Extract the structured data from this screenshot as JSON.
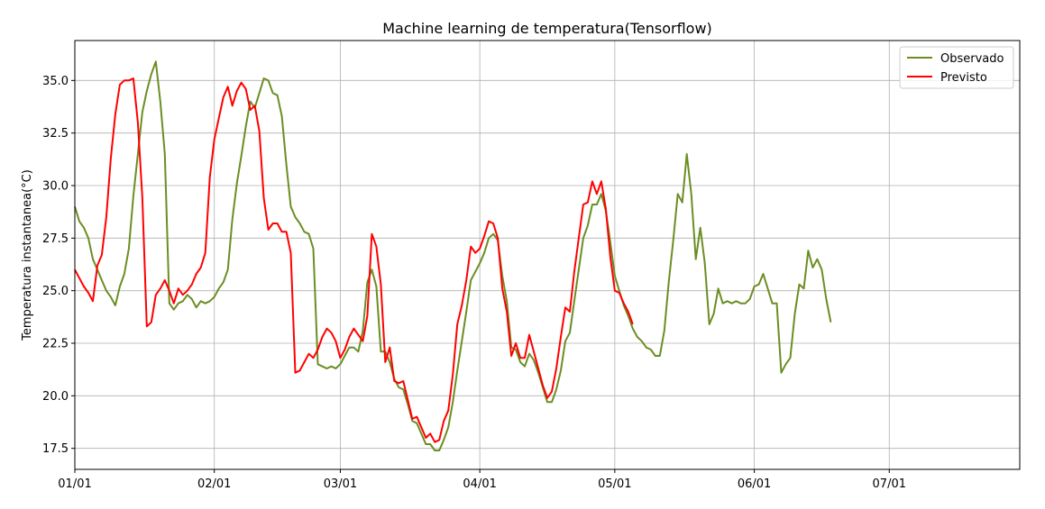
{
  "chart_data": {
    "type": "line",
    "title": "Machine learning de temperatura(Tensorflow)",
    "xlabel": "",
    "ylabel": "Temperatura instantanea(°C)",
    "xlim": [
      0,
      210
    ],
    "ylim": [
      16.5,
      36.9
    ],
    "x_ticks": [
      0,
      31,
      59,
      90,
      120,
      151,
      181
    ],
    "x_tick_labels": [
      "01/01",
      "02/01",
      "03/01",
      "04/01",
      "05/01",
      "06/01",
      "07/01"
    ],
    "y_ticks": [
      17.5,
      20.0,
      22.5,
      25.0,
      27.5,
      30.0,
      32.5,
      35.0
    ],
    "y_tick_labels": [
      "17.5",
      "20.0",
      "22.5",
      "25.0",
      "27.5",
      "30.0",
      "32.5",
      "35.0"
    ],
    "grid": true,
    "legend_position": "top-right",
    "series": [
      {
        "name": "Observado",
        "color": "#6b8e23",
        "points": [
          [
            0,
            29.0
          ],
          [
            1,
            28.3
          ],
          [
            2,
            28.0
          ],
          [
            3,
            27.5
          ],
          [
            4,
            26.5
          ],
          [
            5,
            26.0
          ],
          [
            6,
            25.5
          ],
          [
            7,
            25.0
          ],
          [
            8,
            24.7
          ],
          [
            9,
            24.3
          ],
          [
            10,
            25.2
          ],
          [
            11,
            25.8
          ],
          [
            12,
            27.0
          ],
          [
            13,
            29.5
          ],
          [
            14,
            31.5
          ],
          [
            15,
            33.5
          ],
          [
            16,
            34.5
          ],
          [
            17,
            35.3
          ],
          [
            18,
            35.9
          ],
          [
            19,
            34.0
          ],
          [
            20,
            31.5
          ],
          [
            21,
            24.4
          ],
          [
            22,
            24.1
          ],
          [
            23,
            24.4
          ],
          [
            24,
            24.5
          ],
          [
            25,
            24.8
          ],
          [
            26,
            24.6
          ],
          [
            27,
            24.2
          ],
          [
            28,
            24.5
          ],
          [
            29,
            24.4
          ],
          [
            30,
            24.5
          ],
          [
            31,
            24.7
          ],
          [
            32,
            25.1
          ],
          [
            33,
            25.4
          ],
          [
            34,
            26.0
          ],
          [
            35,
            28.4
          ],
          [
            36,
            30.1
          ],
          [
            37,
            31.4
          ],
          [
            38,
            32.8
          ],
          [
            39,
            34.0
          ],
          [
            40,
            33.7
          ],
          [
            41,
            34.4
          ],
          [
            42,
            35.1
          ],
          [
            43,
            35.0
          ],
          [
            44,
            34.4
          ],
          [
            45,
            34.3
          ],
          [
            46,
            33.3
          ],
          [
            47,
            31.0
          ],
          [
            48,
            29.0
          ],
          [
            49,
            28.5
          ],
          [
            50,
            28.2
          ],
          [
            51,
            27.8
          ],
          [
            52,
            27.7
          ],
          [
            53,
            27.0
          ],
          [
            54,
            21.5
          ],
          [
            55,
            21.4
          ],
          [
            56,
            21.3
          ],
          [
            57,
            21.4
          ],
          [
            58,
            21.3
          ],
          [
            59,
            21.5
          ],
          [
            60,
            21.9
          ],
          [
            61,
            22.3
          ],
          [
            62,
            22.3
          ],
          [
            63,
            22.1
          ],
          [
            64,
            23.1
          ],
          [
            65,
            25.4
          ],
          [
            66,
            26.0
          ],
          [
            67,
            25.2
          ],
          [
            68,
            22.1
          ],
          [
            69,
            22.1
          ],
          [
            70,
            21.6
          ],
          [
            71,
            20.8
          ],
          [
            72,
            20.4
          ],
          [
            73,
            20.3
          ],
          [
            74,
            19.6
          ],
          [
            75,
            18.8
          ],
          [
            76,
            18.7
          ],
          [
            77,
            18.2
          ],
          [
            78,
            17.7
          ],
          [
            79,
            17.7
          ],
          [
            80,
            17.4
          ],
          [
            81,
            17.4
          ],
          [
            82,
            17.9
          ],
          [
            83,
            18.5
          ],
          [
            84,
            19.7
          ],
          [
            85,
            21.2
          ],
          [
            86,
            22.6
          ],
          [
            87,
            24.0
          ],
          [
            88,
            25.5
          ],
          [
            89,
            25.9
          ],
          [
            90,
            26.3
          ],
          [
            91,
            26.8
          ],
          [
            92,
            27.5
          ],
          [
            93,
            27.7
          ],
          [
            94,
            27.4
          ],
          [
            95,
            25.7
          ],
          [
            96,
            24.5
          ],
          [
            97,
            22.3
          ],
          [
            98,
            22.2
          ],
          [
            99,
            21.6
          ],
          [
            100,
            21.4
          ],
          [
            101,
            22.0
          ],
          [
            102,
            21.7
          ],
          [
            103,
            21.1
          ],
          [
            104,
            20.4
          ],
          [
            105,
            19.7
          ],
          [
            106,
            19.7
          ],
          [
            107,
            20.3
          ],
          [
            108,
            21.2
          ],
          [
            109,
            22.6
          ],
          [
            110,
            23.0
          ],
          [
            111,
            24.5
          ],
          [
            112,
            26.0
          ],
          [
            113,
            27.5
          ],
          [
            114,
            28.1
          ],
          [
            115,
            29.1
          ],
          [
            116,
            29.1
          ],
          [
            117,
            29.6
          ],
          [
            118,
            28.8
          ],
          [
            119,
            27.3
          ],
          [
            120,
            25.7
          ],
          [
            121,
            25.0
          ],
          [
            122,
            24.3
          ],
          [
            123,
            23.8
          ],
          [
            124,
            23.2
          ],
          [
            125,
            22.8
          ],
          [
            126,
            22.6
          ],
          [
            127,
            22.3
          ],
          [
            128,
            22.2
          ],
          [
            129,
            21.9
          ],
          [
            130,
            21.9
          ],
          [
            131,
            23.1
          ],
          [
            132,
            25.4
          ],
          [
            133,
            27.4
          ],
          [
            134,
            29.6
          ],
          [
            135,
            29.2
          ],
          [
            136,
            31.5
          ],
          [
            137,
            29.6
          ],
          [
            138,
            26.5
          ],
          [
            139,
            28.0
          ],
          [
            140,
            26.3
          ],
          [
            141,
            23.4
          ],
          [
            142,
            23.9
          ],
          [
            143,
            25.1
          ],
          [
            144,
            24.4
          ],
          [
            145,
            24.5
          ],
          [
            146,
            24.4
          ],
          [
            147,
            24.5
          ],
          [
            148,
            24.4
          ],
          [
            149,
            24.4
          ],
          [
            150,
            24.6
          ],
          [
            151,
            25.2
          ],
          [
            152,
            25.3
          ],
          [
            153,
            25.8
          ],
          [
            154,
            25.1
          ],
          [
            155,
            24.4
          ],
          [
            156,
            24.4
          ],
          [
            157,
            21.1
          ],
          [
            158,
            21.5
          ],
          [
            159,
            21.8
          ],
          [
            160,
            23.9
          ],
          [
            161,
            25.3
          ],
          [
            162,
            25.1
          ],
          [
            163,
            26.9
          ],
          [
            164,
            26.1
          ],
          [
            165,
            26.5
          ],
          [
            166,
            26.0
          ],
          [
            167,
            24.6
          ],
          [
            168,
            23.5
          ]
        ]
      },
      {
        "name": "Previsto",
        "color": "#ff0000",
        "points": [
          [
            0,
            26.0
          ],
          [
            1,
            25.6
          ],
          [
            2,
            25.2
          ],
          [
            3,
            24.9
          ],
          [
            4,
            24.5
          ],
          [
            5,
            26.2
          ],
          [
            6,
            26.7
          ],
          [
            7,
            28.5
          ],
          [
            8,
            31.3
          ],
          [
            9,
            33.4
          ],
          [
            10,
            34.8
          ],
          [
            11,
            35.0
          ],
          [
            12,
            35.0
          ],
          [
            13,
            35.1
          ],
          [
            14,
            33.0
          ],
          [
            15,
            29.4
          ],
          [
            16,
            23.3
          ],
          [
            17,
            23.5
          ],
          [
            18,
            24.8
          ],
          [
            19,
            25.1
          ],
          [
            20,
            25.5
          ],
          [
            21,
            25.0
          ],
          [
            22,
            24.4
          ],
          [
            23,
            25.1
          ],
          [
            24,
            24.8
          ],
          [
            25,
            25.0
          ],
          [
            26,
            25.3
          ],
          [
            27,
            25.8
          ],
          [
            28,
            26.1
          ],
          [
            29,
            26.8
          ],
          [
            30,
            30.4
          ],
          [
            31,
            32.2
          ],
          [
            32,
            33.2
          ],
          [
            33,
            34.2
          ],
          [
            34,
            34.7
          ],
          [
            35,
            33.8
          ],
          [
            36,
            34.5
          ],
          [
            37,
            34.9
          ],
          [
            38,
            34.6
          ],
          [
            39,
            33.6
          ],
          [
            40,
            33.8
          ],
          [
            41,
            32.6
          ],
          [
            42,
            29.4
          ],
          [
            43,
            27.9
          ],
          [
            44,
            28.2
          ],
          [
            45,
            28.2
          ],
          [
            46,
            27.8
          ],
          [
            47,
            27.8
          ],
          [
            48,
            26.8
          ],
          [
            49,
            21.1
          ],
          [
            50,
            21.2
          ],
          [
            51,
            21.6
          ],
          [
            52,
            22.0
          ],
          [
            53,
            21.8
          ],
          [
            54,
            22.2
          ],
          [
            55,
            22.8
          ],
          [
            56,
            23.2
          ],
          [
            57,
            23.0
          ],
          [
            58,
            22.6
          ],
          [
            59,
            21.8
          ],
          [
            60,
            22.2
          ],
          [
            61,
            22.8
          ],
          [
            62,
            23.2
          ],
          [
            63,
            22.9
          ],
          [
            64,
            22.6
          ],
          [
            65,
            23.8
          ],
          [
            66,
            27.7
          ],
          [
            67,
            27.1
          ],
          [
            68,
            25.3
          ],
          [
            69,
            21.6
          ],
          [
            70,
            22.3
          ],
          [
            71,
            20.7
          ],
          [
            72,
            20.6
          ],
          [
            73,
            20.7
          ],
          [
            74,
            19.8
          ],
          [
            75,
            18.9
          ],
          [
            76,
            19.0
          ],
          [
            77,
            18.5
          ],
          [
            78,
            18.0
          ],
          [
            79,
            18.2
          ],
          [
            80,
            17.8
          ],
          [
            81,
            17.9
          ],
          [
            82,
            18.8
          ],
          [
            83,
            19.3
          ],
          [
            84,
            21.0
          ],
          [
            85,
            23.4
          ],
          [
            86,
            24.3
          ],
          [
            87,
            25.5
          ],
          [
            88,
            27.1
          ],
          [
            89,
            26.8
          ],
          [
            90,
            27.0
          ],
          [
            91,
            27.6
          ],
          [
            92,
            28.3
          ],
          [
            93,
            28.2
          ],
          [
            94,
            27.5
          ],
          [
            95,
            25.1
          ],
          [
            96,
            24.0
          ],
          [
            97,
            21.9
          ],
          [
            98,
            22.5
          ],
          [
            99,
            21.8
          ],
          [
            100,
            21.8
          ],
          [
            101,
            22.9
          ],
          [
            102,
            22.1
          ],
          [
            103,
            21.3
          ],
          [
            104,
            20.5
          ],
          [
            105,
            19.9
          ],
          [
            106,
            20.2
          ],
          [
            107,
            21.3
          ],
          [
            108,
            22.8
          ],
          [
            109,
            24.2
          ],
          [
            110,
            24.0
          ],
          [
            111,
            25.9
          ],
          [
            112,
            27.5
          ],
          [
            113,
            29.1
          ],
          [
            114,
            29.2
          ],
          [
            115,
            30.2
          ],
          [
            116,
            29.6
          ],
          [
            117,
            30.2
          ],
          [
            118,
            28.9
          ],
          [
            119,
            26.6
          ],
          [
            120,
            25.0
          ],
          [
            121,
            24.9
          ],
          [
            122,
            24.4
          ],
          [
            123,
            24.0
          ],
          [
            124,
            23.4
          ]
        ]
      }
    ]
  }
}
